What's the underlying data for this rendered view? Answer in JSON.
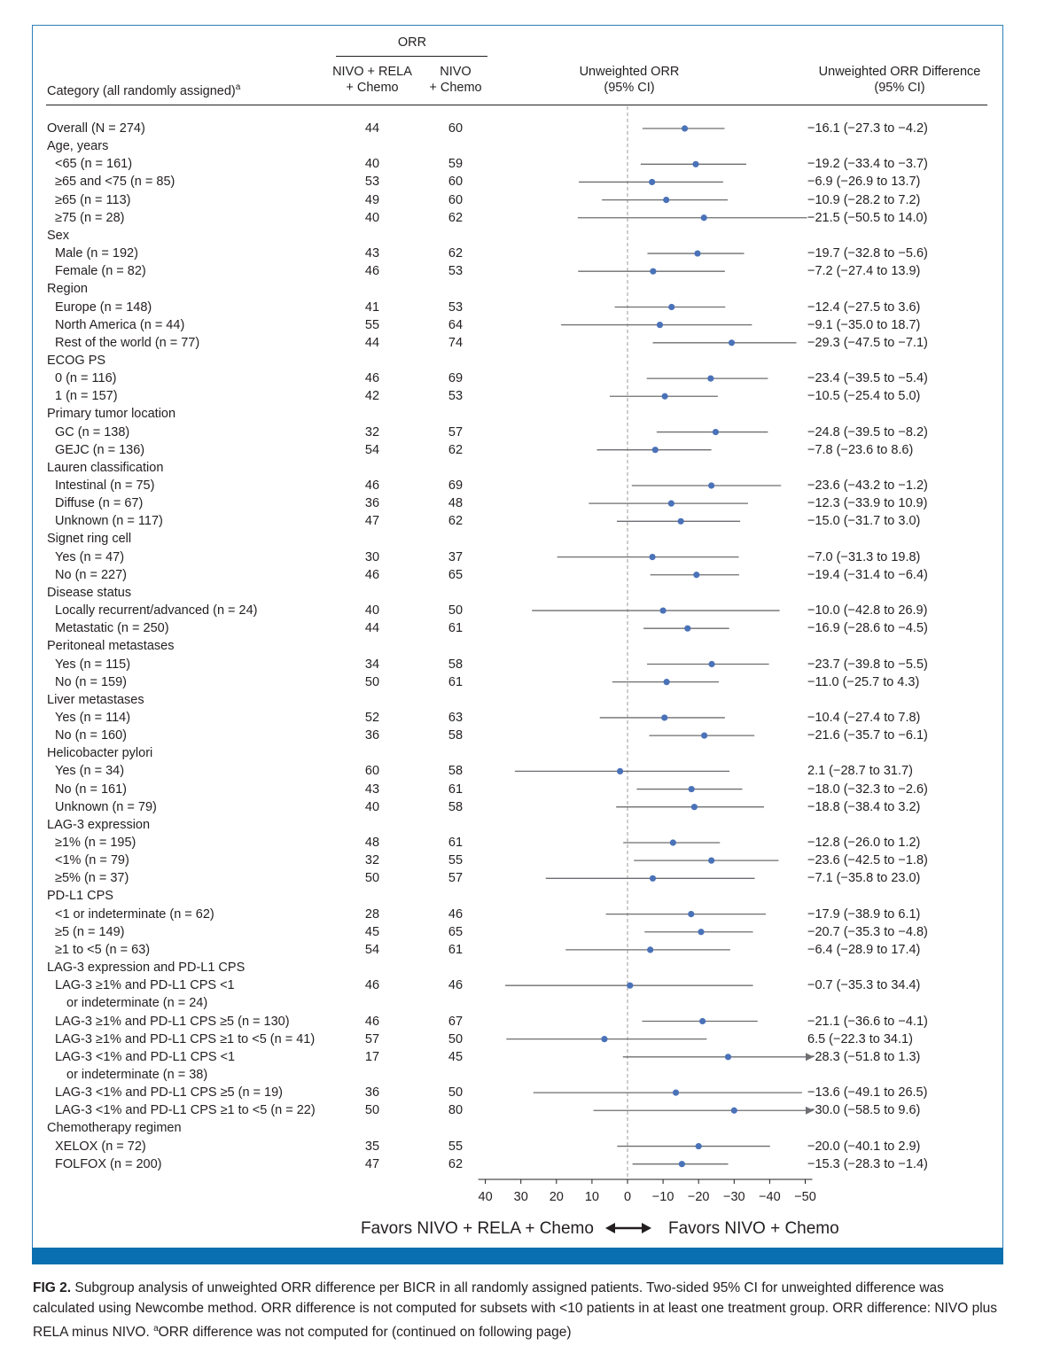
{
  "chart_data": {
    "type": "forest",
    "header": {
      "orr_group": "ORR",
      "arm1_line1": "NIVO + RELA",
      "arm1_line2": "+ Chemo",
      "arm2_line1": "NIVO",
      "arm2_line2": "+ Chemo",
      "category": "Category (all randomly assigned)",
      "category_sup": "a",
      "plot_line1": "Unweighted ORR",
      "plot_line2": "(95% CI)",
      "diff_line1": "Unweighted ORR Difference",
      "diff_line2": "(95% CI)"
    },
    "x_axis": {
      "ticks": [
        40,
        30,
        20,
        10,
        0,
        -10,
        -20,
        -30,
        -40,
        -50
      ],
      "tick_labels": [
        "40",
        "30",
        "20",
        "10",
        "0",
        "−10",
        "−20",
        "−30",
        "−40",
        "−50"
      ],
      "range": [
        42,
        -52
      ]
    },
    "legend_left": "Favors NIVO + RELA + Chemo",
    "legend_right": "Favors NIVO + Chemo",
    "rows": [
      {
        "label": "Overall (N = 274)",
        "indent": false,
        "nivo_rela": "44",
        "nivo": "60",
        "diff": "−16.1 (−27.3 to −4.2)",
        "est": -16.1,
        "lo": -27.3,
        "hi": -4.2
      },
      {
        "label": "Age, years",
        "indent": false,
        "header": true
      },
      {
        "label": "<65 (n = 161)",
        "indent": true,
        "nivo_rela": "40",
        "nivo": "59",
        "diff": "−19.2 (−33.4 to −3.7)",
        "est": -19.2,
        "lo": -33.4,
        "hi": -3.7
      },
      {
        "label": "≥65 and <75 (n = 85)",
        "indent": true,
        "nivo_rela": "53",
        "nivo": "60",
        "diff": "−6.9 (−26.9 to 13.7)",
        "est": -6.9,
        "lo": -26.9,
        "hi": 13.7
      },
      {
        "label": "≥65 (n = 113)",
        "indent": true,
        "nivo_rela": "49",
        "nivo": "60",
        "diff": "−10.9 (−28.2 to 7.2)",
        "est": -10.9,
        "lo": -28.2,
        "hi": 7.2
      },
      {
        "label": "≥75 (n = 28)",
        "indent": true,
        "nivo_rela": "40",
        "nivo": "62",
        "diff": "−21.5 (−50.5 to 14.0)",
        "est": -21.5,
        "lo": -50.5,
        "hi": 14.0
      },
      {
        "label": "Sex",
        "indent": false,
        "header": true
      },
      {
        "label": "Male (n = 192)",
        "indent": true,
        "nivo_rela": "43",
        "nivo": "62",
        "diff": "−19.7 (−32.8 to −5.6)",
        "est": -19.7,
        "lo": -32.8,
        "hi": -5.6
      },
      {
        "label": "Female (n = 82)",
        "indent": true,
        "nivo_rela": "46",
        "nivo": "53",
        "diff": "−7.2 (−27.4 to 13.9)",
        "est": -7.2,
        "lo": -27.4,
        "hi": 13.9
      },
      {
        "label": "Region",
        "indent": false,
        "header": true
      },
      {
        "label": "Europe (n = 148)",
        "indent": true,
        "nivo_rela": "41",
        "nivo": "53",
        "diff": "−12.4 (−27.5 to 3.6)",
        "est": -12.4,
        "lo": -27.5,
        "hi": 3.6
      },
      {
        "label": "North America (n = 44)",
        "indent": true,
        "nivo_rela": "55",
        "nivo": "64",
        "diff": "−9.1 (−35.0 to 18.7)",
        "est": -9.1,
        "lo": -35.0,
        "hi": 18.7
      },
      {
        "label": "Rest of the world (n = 77)",
        "indent": true,
        "nivo_rela": "44",
        "nivo": "74",
        "diff": "−29.3 (−47.5 to −7.1)",
        "est": -29.3,
        "lo": -47.5,
        "hi": -7.1
      },
      {
        "label": "ECOG PS",
        "indent": false,
        "header": true
      },
      {
        "label": "0 (n = 116)",
        "indent": true,
        "nivo_rela": "46",
        "nivo": "69",
        "diff": "−23.4 (−39.5 to −5.4)",
        "est": -23.4,
        "lo": -39.5,
        "hi": -5.4
      },
      {
        "label": "1 (n = 157)",
        "indent": true,
        "nivo_rela": "42",
        "nivo": "53",
        "diff": "−10.5 (−25.4 to 5.0)",
        "est": -10.5,
        "lo": -25.4,
        "hi": 5.0
      },
      {
        "label": "Primary tumor location",
        "indent": false,
        "header": true
      },
      {
        "label": "GC (n = 138)",
        "indent": true,
        "nivo_rela": "32",
        "nivo": "57",
        "diff": "−24.8 (−39.5 to −8.2)",
        "est": -24.8,
        "lo": -39.5,
        "hi": -8.2
      },
      {
        "label": "GEJC (n = 136)",
        "indent": true,
        "nivo_rela": "54",
        "nivo": "62",
        "diff": "−7.8 (−23.6 to 8.6)",
        "est": -7.8,
        "lo": -23.6,
        "hi": 8.6
      },
      {
        "label": "Lauren classification",
        "indent": false,
        "header": true
      },
      {
        "label": "Intestinal (n = 75)",
        "indent": true,
        "nivo_rela": "46",
        "nivo": "69",
        "diff": "−23.6 (−43.2 to −1.2)",
        "est": -23.6,
        "lo": -43.2,
        "hi": -1.2
      },
      {
        "label": "Diffuse (n = 67)",
        "indent": true,
        "nivo_rela": "36",
        "nivo": "48",
        "diff": "−12.3 (−33.9 to 10.9)",
        "est": -12.3,
        "lo": -33.9,
        "hi": 10.9
      },
      {
        "label": "Unknown (n = 117)",
        "indent": true,
        "nivo_rela": "47",
        "nivo": "62",
        "diff": "−15.0 (−31.7 to 3.0)",
        "est": -15.0,
        "lo": -31.7,
        "hi": 3.0
      },
      {
        "label": "Signet ring cell",
        "indent": false,
        "header": true
      },
      {
        "label": "Yes (n = 47)",
        "indent": true,
        "nivo_rela": "30",
        "nivo": "37",
        "diff": "−7.0 (−31.3 to 19.8)",
        "est": -7.0,
        "lo": -31.3,
        "hi": 19.8
      },
      {
        "label": "No (n = 227)",
        "indent": true,
        "nivo_rela": "46",
        "nivo": "65",
        "diff": "−19.4 (−31.4 to −6.4)",
        "est": -19.4,
        "lo": -31.4,
        "hi": -6.4
      },
      {
        "label": "Disease status",
        "indent": false,
        "header": true
      },
      {
        "label": "Locally recurrent/advanced (n = 24)",
        "indent": true,
        "nivo_rela": "40",
        "nivo": "50",
        "diff": "−10.0 (−42.8 to 26.9)",
        "est": -10.0,
        "lo": -42.8,
        "hi": 26.9
      },
      {
        "label": "Metastatic (n = 250)",
        "indent": true,
        "nivo_rela": "44",
        "nivo": "61",
        "diff": "−16.9 (−28.6 to −4.5)",
        "est": -16.9,
        "lo": -28.6,
        "hi": -4.5
      },
      {
        "label": "Peritoneal metastases",
        "indent": false,
        "header": true
      },
      {
        "label": "Yes (n = 115)",
        "indent": true,
        "nivo_rela": "34",
        "nivo": "58",
        "diff": "−23.7 (−39.8 to −5.5)",
        "est": -23.7,
        "lo": -39.8,
        "hi": -5.5
      },
      {
        "label": "No (n = 159)",
        "indent": true,
        "nivo_rela": "50",
        "nivo": "61",
        "diff": "−11.0 (−25.7 to 4.3)",
        "est": -11.0,
        "lo": -25.7,
        "hi": 4.3
      },
      {
        "label": "Liver metastases",
        "indent": false,
        "header": true
      },
      {
        "label": "Yes (n = 114)",
        "indent": true,
        "nivo_rela": "52",
        "nivo": "63",
        "diff": "−10.4 (−27.4 to 7.8)",
        "est": -10.4,
        "lo": -27.4,
        "hi": 7.8
      },
      {
        "label": "No (n = 160)",
        "indent": true,
        "nivo_rela": "36",
        "nivo": "58",
        "diff": "−21.6 (−35.7 to −6.1)",
        "est": -21.6,
        "lo": -35.7,
        "hi": -6.1
      },
      {
        "label": "Helicobacter pylori",
        "indent": false,
        "header": true
      },
      {
        "label": "Yes (n = 34)",
        "indent": true,
        "nivo_rela": "60",
        "nivo": "58",
        "diff": "2.1 (−28.7 to 31.7)",
        "est": 2.1,
        "lo": -28.7,
        "hi": 31.7
      },
      {
        "label": "No (n = 161)",
        "indent": true,
        "nivo_rela": "43",
        "nivo": "61",
        "diff": "−18.0 (−32.3 to −2.6)",
        "est": -18.0,
        "lo": -32.3,
        "hi": -2.6
      },
      {
        "label": "Unknown (n = 79)",
        "indent": true,
        "nivo_rela": "40",
        "nivo": "58",
        "diff": "−18.8 (−38.4 to 3.2)",
        "est": -18.8,
        "lo": -38.4,
        "hi": 3.2
      },
      {
        "label": "LAG-3 expression",
        "indent": false,
        "header": true
      },
      {
        "label": "≥1% (n = 195)",
        "indent": true,
        "nivo_rela": "48",
        "nivo": "61",
        "diff": "−12.8 (−26.0 to 1.2)",
        "est": -12.8,
        "lo": -26.0,
        "hi": 1.2
      },
      {
        "label": "<1% (n = 79)",
        "indent": true,
        "nivo_rela": "32",
        "nivo": "55",
        "diff": "−23.6 (−42.5 to −1.8)",
        "est": -23.6,
        "lo": -42.5,
        "hi": -1.8
      },
      {
        "label": "≥5% (n = 37)",
        "indent": true,
        "nivo_rela": "50",
        "nivo": "57",
        "diff": "−7.1 (−35.8 to 23.0)",
        "est": -7.1,
        "lo": -35.8,
        "hi": 23.0
      },
      {
        "label": "PD-L1 CPS",
        "indent": false,
        "header": true
      },
      {
        "label": "<1 or indeterminate (n = 62)",
        "indent": true,
        "nivo_rela": "28",
        "nivo": "46",
        "diff": "−17.9 (−38.9 to 6.1)",
        "est": -17.9,
        "lo": -38.9,
        "hi": 6.1
      },
      {
        "label": "≥5 (n = 149)",
        "indent": true,
        "nivo_rela": "45",
        "nivo": "65",
        "diff": "−20.7 (−35.3 to −4.8)",
        "est": -20.7,
        "lo": -35.3,
        "hi": -4.8
      },
      {
        "label": "≥1 to <5 (n = 63)",
        "indent": true,
        "nivo_rela": "54",
        "nivo": "61",
        "diff": "−6.4 (−28.9 to 17.4)",
        "est": -6.4,
        "lo": -28.9,
        "hi": 17.4
      },
      {
        "label": "LAG-3 expression and PD-L1 CPS",
        "indent": false,
        "header": true
      },
      {
        "label": "LAG-3 ≥1% and PD-L1 CPS <1",
        "label2": "or indeterminate (n = 24)",
        "indent": true,
        "nivo_rela": "46",
        "nivo": "46",
        "diff": "−0.7 (−35.3 to 34.4)",
        "est": -0.7,
        "lo": -35.3,
        "hi": 34.4
      },
      {
        "label": "LAG-3 ≥1% and PD-L1 CPS ≥5 (n = 130)",
        "indent": true,
        "nivo_rela": "46",
        "nivo": "67",
        "diff": "−21.1 (−36.6 to −4.1)",
        "est": -21.1,
        "lo": -36.6,
        "hi": -4.1
      },
      {
        "label": "LAG-3 ≥1% and PD-L1 CPS ≥1 to <5 (n = 41)",
        "indent": true,
        "nivo_rela": "57",
        "nivo": "50",
        "diff": "6.5 (−22.3 to 34.1)",
        "est": 6.5,
        "lo": -22.3,
        "hi": 34.1
      },
      {
        "label": "LAG-3 <1% and PD-L1 CPS <1",
        "label2": "or indeterminate (n = 38)",
        "indent": true,
        "nivo_rela": "17",
        "nivo": "45",
        "diff": "−28.3 (−51.8 to 1.3)",
        "est": -28.3,
        "lo": -51.8,
        "hi": 1.3
      },
      {
        "label": "LAG-3 <1% and PD-L1 CPS ≥5 (n = 19)",
        "indent": true,
        "nivo_rela": "36",
        "nivo": "50",
        "diff": "−13.6 (−49.1 to 26.5)",
        "est": -13.6,
        "lo": -49.1,
        "hi": 26.5
      },
      {
        "label": "LAG-3 <1% and PD-L1 CPS ≥1 to <5 (n = 22)",
        "indent": true,
        "nivo_rela": "50",
        "nivo": "80",
        "diff": "−30.0 (−58.5 to 9.6)",
        "est": -30.0,
        "lo": -58.5,
        "hi": 9.6
      },
      {
        "label": "Chemotherapy regimen",
        "indent": false,
        "header": true
      },
      {
        "label": "XELOX (n = 72)",
        "indent": true,
        "nivo_rela": "35",
        "nivo": "55",
        "diff": "−20.0 (−40.1 to 2.9)",
        "est": -20.0,
        "lo": -40.1,
        "hi": 2.9
      },
      {
        "label": "FOLFOX (n = 200)",
        "indent": true,
        "nivo_rela": "47",
        "nivo": "62",
        "diff": "−15.3 (−28.3 to −1.4)",
        "est": -15.3,
        "lo": -28.3,
        "hi": -1.4
      }
    ],
    "colors": {
      "point": "#4a72b8",
      "line": "#6d6e71",
      "reference": "#9b9b9b",
      "band": "#0a6fae"
    }
  },
  "caption": {
    "fig_label": "FIG 2.",
    "text": " Subgroup analysis of unweighted ORR difference per BICR in all randomly assigned patients. Two-sided 95% CI for unweighted difference was calculated using Newcombe method. ORR difference is not computed for subsets with <10 patients in at least one treatment group. ORR difference: NIVO plus RELA minus NIVO. ",
    "footnote_mark": "a",
    "footnote": "ORR difference was not computed for  (continued on following page)"
  }
}
